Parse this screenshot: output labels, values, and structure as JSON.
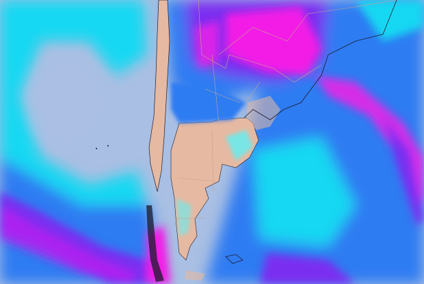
{
  "map": {
    "region": "",
    "colors": {
      "ocean_clear": "#a9bfe3",
      "land": "#e6b9a2",
      "light_cyan": "#5ff0f5",
      "cyan": "#14d8f2",
      "blue": "#2f7bf2",
      "purple": "#7a2ef0",
      "magenta": "#f21ee6",
      "border": "#c9a48f",
      "coast": "#1a1a2a"
    }
  }
}
